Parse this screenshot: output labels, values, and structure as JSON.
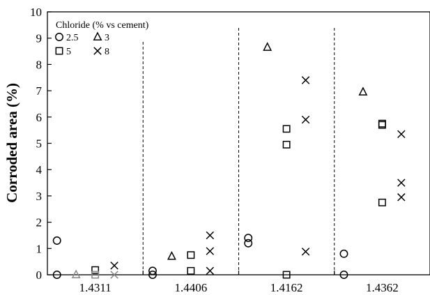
{
  "chart_data": {
    "type": "scatter",
    "ylabel": "Corroded area (%)",
    "xlabel": "",
    "ylim": [
      0,
      10
    ],
    "yticks": [
      "0",
      "1",
      "2",
      "3",
      "4",
      "5",
      "6",
      "7",
      "8",
      "9",
      "10"
    ],
    "categories": [
      "1.4311",
      "1.4406",
      "1.4162",
      "1.4362"
    ],
    "grid": false,
    "legend": {
      "title": "Chloride (% vs cement)",
      "placement": "top-left",
      "entries": [
        {
          "label": "2.5",
          "marker": "circle"
        },
        {
          "label": "3",
          "marker": "triangle"
        },
        {
          "label": "5",
          "marker": "square"
        },
        {
          "label": "8",
          "marker": "x"
        }
      ]
    },
    "series": [
      {
        "name": "2.5",
        "marker": "circle",
        "points": [
          {
            "category": "1.4311",
            "y": 1.3
          },
          {
            "category": "1.4311",
            "y": 0
          },
          {
            "category": "1.4406",
            "y": 0.15
          },
          {
            "category": "1.4406",
            "y": 0
          },
          {
            "category": "1.4162",
            "y": 1.4
          },
          {
            "category": "1.4162",
            "y": 1.2
          },
          {
            "category": "1.4362",
            "y": 0.8
          },
          {
            "category": "1.4362",
            "y": 0
          }
        ]
      },
      {
        "name": "3",
        "marker": "triangle",
        "points": [
          {
            "category": "1.4311",
            "y": 0
          },
          {
            "category": "1.4406",
            "y": 0.7
          },
          {
            "category": "1.4162",
            "y": 8.65
          },
          {
            "category": "1.4362",
            "y": 6.95
          }
        ]
      },
      {
        "name": "5",
        "marker": "square",
        "points": [
          {
            "category": "1.4311",
            "y": 0.18
          },
          {
            "category": "1.4311",
            "y": 0
          },
          {
            "category": "1.4406",
            "y": 0.75
          },
          {
            "category": "1.4406",
            "y": 0.15
          },
          {
            "category": "1.4162",
            "y": 5.55
          },
          {
            "category": "1.4162",
            "y": 4.95
          },
          {
            "category": "1.4162",
            "y": 0
          },
          {
            "category": "1.4362",
            "y": 5.75
          },
          {
            "category": "1.4362",
            "y": 5.7
          },
          {
            "category": "1.4362",
            "y": 2.75
          }
        ]
      },
      {
        "name": "8",
        "marker": "x",
        "points": [
          {
            "category": "1.4311",
            "y": 0.35
          },
          {
            "category": "1.4311",
            "y": 0
          },
          {
            "category": "1.4406",
            "y": 1.5
          },
          {
            "category": "1.4406",
            "y": 0.9
          },
          {
            "category": "1.4406",
            "y": 0.15
          },
          {
            "category": "1.4162",
            "y": 7.4
          },
          {
            "category": "1.4162",
            "y": 5.9
          },
          {
            "category": "1.4162",
            "y": 0.88
          },
          {
            "category": "1.4362",
            "y": 5.35
          },
          {
            "category": "1.4362",
            "y": 3.5
          },
          {
            "category": "1.4362",
            "y": 2.95
          }
        ]
      }
    ]
  }
}
